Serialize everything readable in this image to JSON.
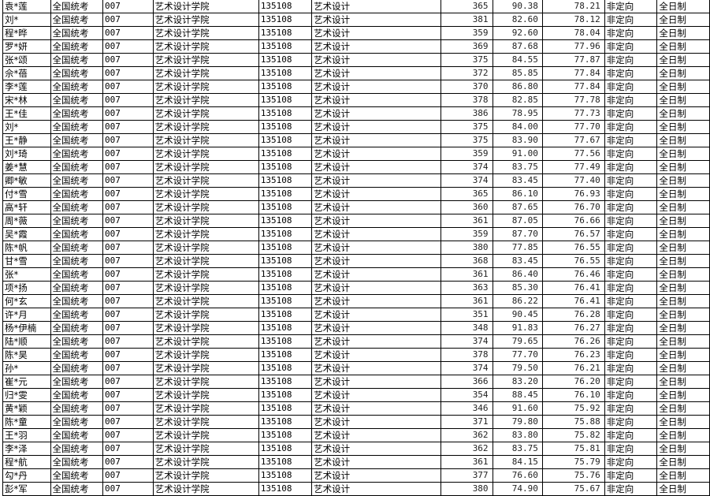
{
  "rows": [
    [
      "袁*莲",
      "全国统考",
      "007",
      "艺术设计学院",
      "135108",
      "艺术设计",
      "365",
      "90.38",
      "78.21",
      "非定向",
      "全日制"
    ],
    [
      "刘*",
      "全国统考",
      "007",
      "艺术设计学院",
      "135108",
      "艺术设计",
      "381",
      "82.60",
      "78.12",
      "非定向",
      "全日制"
    ],
    [
      "程*晔",
      "全国统考",
      "007",
      "艺术设计学院",
      "135108",
      "艺术设计",
      "359",
      "92.60",
      "78.04",
      "非定向",
      "全日制"
    ],
    [
      "罗*妍",
      "全国统考",
      "007",
      "艺术设计学院",
      "135108",
      "艺术设计",
      "369",
      "87.68",
      "77.96",
      "非定向",
      "全日制"
    ],
    [
      "张*颂",
      "全国统考",
      "007",
      "艺术设计学院",
      "135108",
      "艺术设计",
      "375",
      "84.55",
      "77.87",
      "非定向",
      "全日制"
    ],
    [
      "佘*蓓",
      "全国统考",
      "007",
      "艺术设计学院",
      "135108",
      "艺术设计",
      "372",
      "85.85",
      "77.84",
      "非定向",
      "全日制"
    ],
    [
      "李*莲",
      "全国统考",
      "007",
      "艺术设计学院",
      "135108",
      "艺术设计",
      "370",
      "86.80",
      "77.84",
      "非定向",
      "全日制"
    ],
    [
      "宋*林",
      "全国统考",
      "007",
      "艺术设计学院",
      "135108",
      "艺术设计",
      "378",
      "82.85",
      "77.78",
      "非定向",
      "全日制"
    ],
    [
      "王*佳",
      "全国统考",
      "007",
      "艺术设计学院",
      "135108",
      "艺术设计",
      "386",
      "78.95",
      "77.73",
      "非定向",
      "全日制"
    ],
    [
      "刘*",
      "全国统考",
      "007",
      "艺术设计学院",
      "135108",
      "艺术设计",
      "375",
      "84.00",
      "77.70",
      "非定向",
      "全日制"
    ],
    [
      "王*静",
      "全国统考",
      "007",
      "艺术设计学院",
      "135108",
      "艺术设计",
      "375",
      "83.90",
      "77.67",
      "非定向",
      "全日制"
    ],
    [
      "刘*琦",
      "全国统考",
      "007",
      "艺术设计学院",
      "135108",
      "艺术设计",
      "359",
      "91.00",
      "77.56",
      "非定向",
      "全日制"
    ],
    [
      "姜*慧",
      "全国统考",
      "007",
      "艺术设计学院",
      "135108",
      "艺术设计",
      "374",
      "83.75",
      "77.49",
      "非定向",
      "全日制"
    ],
    [
      "卿*敏",
      "全国统考",
      "007",
      "艺术设计学院",
      "135108",
      "艺术设计",
      "374",
      "83.45",
      "77.40",
      "非定向",
      "全日制"
    ],
    [
      "付*雪",
      "全国统考",
      "007",
      "艺术设计学院",
      "135108",
      "艺术设计",
      "365",
      "86.10",
      "76.93",
      "非定向",
      "全日制"
    ],
    [
      "高*轩",
      "全国统考",
      "007",
      "艺术设计学院",
      "135108",
      "艺术设计",
      "360",
      "87.65",
      "76.70",
      "非定向",
      "全日制"
    ],
    [
      "周*薇",
      "全国统考",
      "007",
      "艺术设计学院",
      "135108",
      "艺术设计",
      "361",
      "87.05",
      "76.66",
      "非定向",
      "全日制"
    ],
    [
      "吴*霞",
      "全国统考",
      "007",
      "艺术设计学院",
      "135108",
      "艺术设计",
      "359",
      "87.70",
      "76.57",
      "非定向",
      "全日制"
    ],
    [
      "陈*帆",
      "全国统考",
      "007",
      "艺术设计学院",
      "135108",
      "艺术设计",
      "380",
      "77.85",
      "76.55",
      "非定向",
      "全日制"
    ],
    [
      "甘*雪",
      "全国统考",
      "007",
      "艺术设计学院",
      "135108",
      "艺术设计",
      "368",
      "83.45",
      "76.55",
      "非定向",
      "全日制"
    ],
    [
      "张*",
      "全国统考",
      "007",
      "艺术设计学院",
      "135108",
      "艺术设计",
      "361",
      "86.40",
      "76.46",
      "非定向",
      "全日制"
    ],
    [
      "项*扬",
      "全国统考",
      "007",
      "艺术设计学院",
      "135108",
      "艺术设计",
      "363",
      "85.30",
      "76.41",
      "非定向",
      "全日制"
    ],
    [
      "何*玄",
      "全国统考",
      "007",
      "艺术设计学院",
      "135108",
      "艺术设计",
      "361",
      "86.22",
      "76.41",
      "非定向",
      "全日制"
    ],
    [
      "许*月",
      "全国统考",
      "007",
      "艺术设计学院",
      "135108",
      "艺术设计",
      "351",
      "90.45",
      "76.28",
      "非定向",
      "全日制"
    ],
    [
      "杨*伊楠",
      "全国统考",
      "007",
      "艺术设计学院",
      "135108",
      "艺术设计",
      "348",
      "91.83",
      "76.27",
      "非定向",
      "全日制"
    ],
    [
      "陆*顺",
      "全国统考",
      "007",
      "艺术设计学院",
      "135108",
      "艺术设计",
      "374",
      "79.65",
      "76.26",
      "非定向",
      "全日制"
    ],
    [
      "陈*昊",
      "全国统考",
      "007",
      "艺术设计学院",
      "135108",
      "艺术设计",
      "378",
      "77.70",
      "76.23",
      "非定向",
      "全日制"
    ],
    [
      "孙*",
      "全国统考",
      "007",
      "艺术设计学院",
      "135108",
      "艺术设计",
      "374",
      "79.50",
      "76.21",
      "非定向",
      "全日制"
    ],
    [
      "崔*元",
      "全国统考",
      "007",
      "艺术设计学院",
      "135108",
      "艺术设计",
      "366",
      "83.20",
      "76.20",
      "非定向",
      "全日制"
    ],
    [
      "归*雯",
      "全国统考",
      "007",
      "艺术设计学院",
      "135108",
      "艺术设计",
      "354",
      "88.45",
      "76.10",
      "非定向",
      "全日制"
    ],
    [
      "黄*颖",
      "全国统考",
      "007",
      "艺术设计学院",
      "135108",
      "艺术设计",
      "346",
      "91.60",
      "75.92",
      "非定向",
      "全日制"
    ],
    [
      "陈*童",
      "全国统考",
      "007",
      "艺术设计学院",
      "135108",
      "艺术设计",
      "371",
      "79.80",
      "75.88",
      "非定向",
      "全日制"
    ],
    [
      "王*羽",
      "全国统考",
      "007",
      "艺术设计学院",
      "135108",
      "艺术设计",
      "362",
      "83.80",
      "75.82",
      "非定向",
      "全日制"
    ],
    [
      "李*泽",
      "全国统考",
      "007",
      "艺术设计学院",
      "135108",
      "艺术设计",
      "362",
      "83.75",
      "75.81",
      "非定向",
      "全日制"
    ],
    [
      "程*航",
      "全国统考",
      "007",
      "艺术设计学院",
      "135108",
      "艺术设计",
      "361",
      "84.15",
      "75.79",
      "非定向",
      "全日制"
    ],
    [
      "勾*丹",
      "全国统考",
      "007",
      "艺术设计学院",
      "135108",
      "艺术设计",
      "377",
      "76.60",
      "75.76",
      "非定向",
      "全日制"
    ],
    [
      "彭*军",
      "全国统考",
      "007",
      "艺术设计学院",
      "135108",
      "艺术设计",
      "380",
      "74.90",
      "75.67",
      "非定向",
      "全日制"
    ]
  ]
}
